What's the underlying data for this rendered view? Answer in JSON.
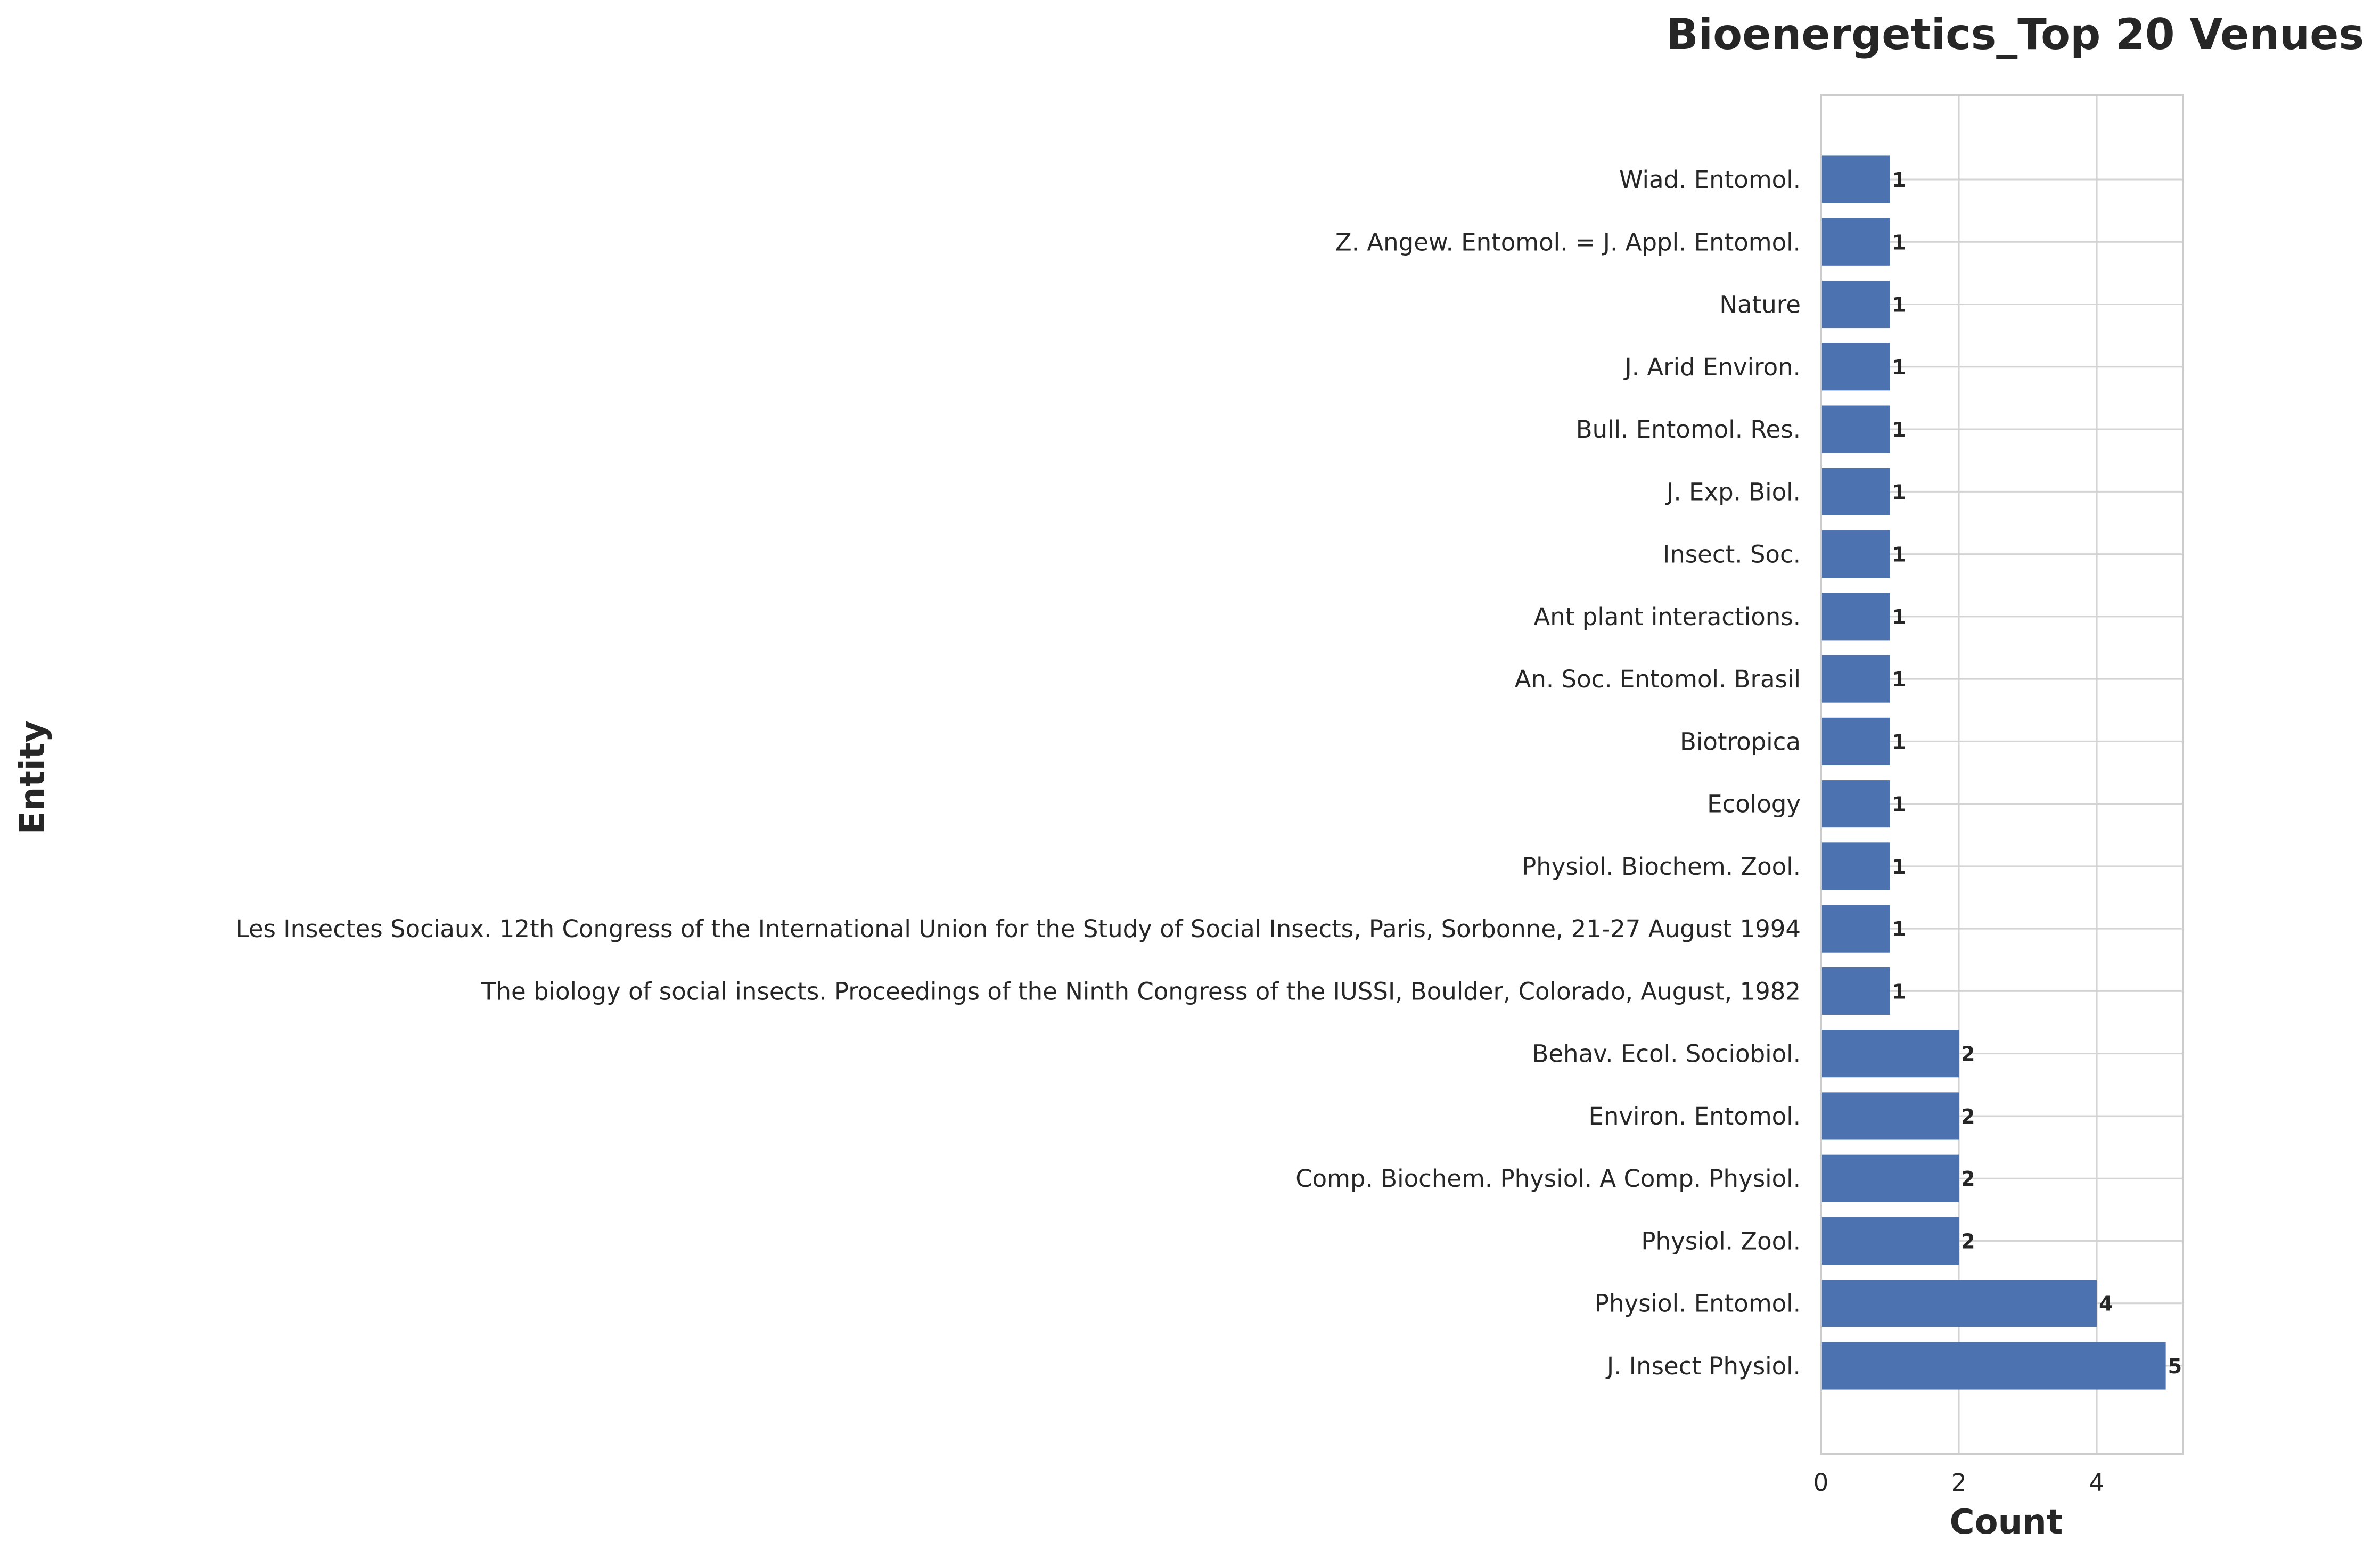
{
  "chart_data": {
    "type": "bar",
    "orientation": "horizontal",
    "title": "Bioenergetics_Top 20 Venues",
    "xlabel": "Count",
    "ylabel": "Entity",
    "xlim": [
      0,
      5.25
    ],
    "xticks": [
      0,
      2,
      4
    ],
    "grid": true,
    "bar_color": "#4c72b0",
    "categories": [
      "J. Insect Physiol.",
      "Physiol. Entomol.",
      "Physiol. Zool.",
      "Comp. Biochem. Physiol. A Comp. Physiol.",
      "Environ. Entomol.",
      "Behav. Ecol. Sociobiol.",
      "The biology of social insects. Proceedings of the Ninth Congress of the IUSSI, Boulder, Colorado, August, 1982",
      "Les Insectes Sociaux. 12th Congress of the International Union for the Study of Social Insects, Paris, Sorbonne, 21-27 August 1994",
      "Physiol. Biochem. Zool.",
      "Ecology",
      "Biotropica",
      "An. Soc. Entomol. Brasil",
      "Ant plant interactions.",
      "Insect. Soc.",
      "J. Exp. Biol.",
      "Bull. Entomol. Res.",
      "J. Arid Environ.",
      "Nature",
      "Z. Angew. Entomol. = J. Appl. Entomol.",
      "Wiad. Entomol."
    ],
    "values": [
      5,
      4,
      2,
      2,
      2,
      2,
      1,
      1,
      1,
      1,
      1,
      1,
      1,
      1,
      1,
      1,
      1,
      1,
      1,
      1
    ]
  }
}
